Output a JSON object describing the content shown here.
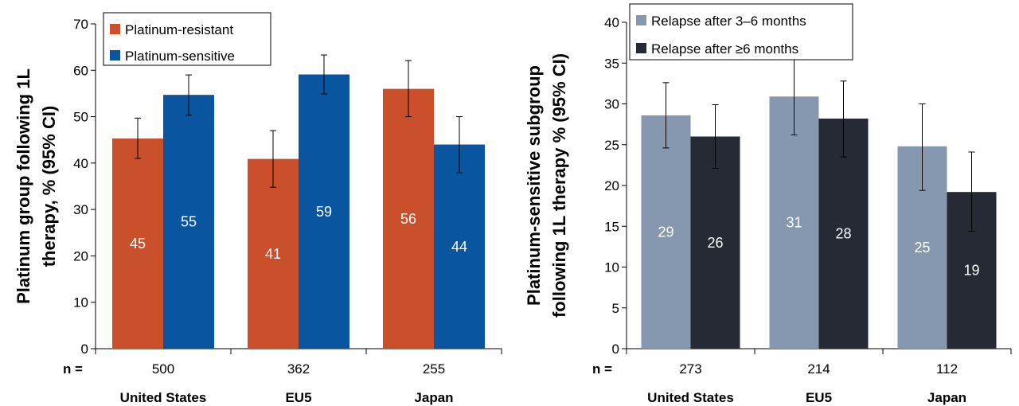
{
  "chart_data": [
    {
      "type": "bar",
      "ylabel_lines": [
        "Platinum group following 1L",
        "therapy, % (95% CI)"
      ],
      "ylim": [
        0,
        70
      ],
      "yticks": [
        0,
        10,
        20,
        30,
        40,
        50,
        60,
        70
      ],
      "n_label": "n =",
      "categories": [
        "United States",
        "EU5",
        "Japan"
      ],
      "n_values": [
        "500",
        "362",
        "255"
      ],
      "legend_position": "top-left",
      "series": [
        {
          "name": "Platinum-resistant",
          "color": "#c9502a",
          "values": [
            45.3,
            40.9,
            56.0
          ],
          "labels": [
            "45",
            "41",
            "56"
          ],
          "ci_low": [
            41.0,
            34.8,
            50.0
          ],
          "ci_high": [
            49.7,
            47.0,
            62.1
          ]
        },
        {
          "name": "Platinum-sensitive",
          "color": "#0a55a0",
          "values": [
            54.7,
            59.1,
            44.0
          ],
          "labels": [
            "55",
            "59",
            "44"
          ],
          "ci_low": [
            50.3,
            54.9,
            37.9
          ],
          "ci_high": [
            59.0,
            63.3,
            50.0
          ]
        }
      ]
    },
    {
      "type": "bar",
      "ylabel_lines": [
        "Platinum-sensitive subgroup",
        "following 1L therapy % (95% CI)"
      ],
      "ylim": [
        0,
        40
      ],
      "yticks": [
        0,
        5,
        10,
        15,
        20,
        25,
        30,
        35,
        40
      ],
      "n_label": "n =",
      "categories": [
        "United States",
        "EU5",
        "Japan"
      ],
      "n_values": [
        "273",
        "214",
        "112"
      ],
      "legend_position": "top-left",
      "series": [
        {
          "name": "Relapse after 3–6 months",
          "color": "#8598b0",
          "values": [
            28.6,
            30.9,
            24.8
          ],
          "labels": [
            "29",
            "31",
            "25"
          ],
          "ci_low": [
            24.6,
            26.2,
            19.4
          ],
          "ci_high": [
            32.6,
            35.6,
            30.0
          ]
        },
        {
          "name": "Relapse after ≥6 months",
          "color": "#252a34",
          "values": [
            26.0,
            28.2,
            19.2
          ],
          "labels": [
            "26",
            "28",
            "19"
          ],
          "ci_low": [
            22.1,
            23.5,
            14.4
          ],
          "ci_high": [
            29.9,
            32.8,
            24.1
          ]
        }
      ]
    }
  ]
}
